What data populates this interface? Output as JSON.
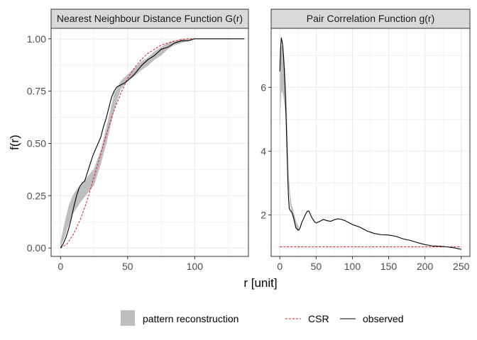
{
  "colors": {
    "strip_fill": "#d9d9d9",
    "grid": "#ebebeb",
    "panel_border": "#333333",
    "band": "#bebebe",
    "csr": "#e41a1c",
    "observed": "#000000"
  },
  "axis_titles": {
    "x": "r [unit]",
    "y": "f(r)"
  },
  "legend": {
    "position": "bottom",
    "items": [
      {
        "label": "pattern reconstruction",
        "kind": "band"
      },
      {
        "label": "CSR",
        "kind": "dashed-line"
      },
      {
        "label": "observed",
        "kind": "line"
      }
    ]
  },
  "chart_data": [
    {
      "type": "line",
      "title": "Nearest Neighbour Distance Function G(r)",
      "xlim": [
        -7,
        140
      ],
      "ylim": [
        -0.04,
        1.05
      ],
      "x_ticks": [
        0,
        50,
        100
      ],
      "y_ticks": [
        0.0,
        0.25,
        0.5,
        0.75,
        1.0
      ],
      "y_tick_labels": [
        "0.00",
        "0.25",
        "0.50",
        "0.75",
        "1.00"
      ],
      "grid": true,
      "series": [
        {
          "name": "pattern reconstruction",
          "kind": "band",
          "x": [
            0,
            3,
            6,
            9,
            12,
            15,
            20,
            25,
            30,
            35,
            40,
            45,
            50,
            55,
            60,
            65,
            70,
            75,
            80,
            85,
            90,
            95,
            100,
            110
          ],
          "lo": [
            0.0,
            0.05,
            0.11,
            0.16,
            0.19,
            0.22,
            0.26,
            0.3,
            0.4,
            0.52,
            0.66,
            0.76,
            0.8,
            0.82,
            0.85,
            0.87,
            0.9,
            0.92,
            0.95,
            0.97,
            0.98,
            0.99,
            1.0,
            1.0
          ],
          "hi": [
            0.03,
            0.12,
            0.2,
            0.25,
            0.28,
            0.3,
            0.34,
            0.38,
            0.47,
            0.6,
            0.74,
            0.8,
            0.83,
            0.86,
            0.89,
            0.91,
            0.94,
            0.96,
            0.98,
            0.99,
            1.0,
            1.0,
            1.0,
            1.0
          ]
        },
        {
          "name": "CSR",
          "kind": "dashed-line",
          "x": [
            0,
            5,
            10,
            15,
            20,
            25,
            30,
            35,
            40,
            45,
            50,
            55,
            60,
            65,
            70,
            75,
            80,
            85,
            90,
            95,
            100
          ],
          "y": [
            0.0,
            0.02,
            0.07,
            0.14,
            0.23,
            0.34,
            0.45,
            0.56,
            0.66,
            0.74,
            0.81,
            0.86,
            0.9,
            0.93,
            0.95,
            0.97,
            0.98,
            0.99,
            0.995,
            1.0,
            1.0
          ]
        },
        {
          "name": "observed",
          "kind": "line",
          "x": [
            0,
            2,
            4,
            6,
            8,
            10,
            12,
            14,
            16,
            18,
            20,
            22,
            24,
            26,
            28,
            30,
            32,
            34,
            36,
            38,
            40,
            42,
            45,
            48,
            50,
            55,
            60,
            65,
            70,
            75,
            80,
            85,
            90,
            95,
            100,
            110,
            120,
            130,
            137
          ],
          "y": [
            0.0,
            0.02,
            0.05,
            0.09,
            0.14,
            0.2,
            0.25,
            0.29,
            0.31,
            0.32,
            0.36,
            0.4,
            0.44,
            0.47,
            0.5,
            0.53,
            0.58,
            0.62,
            0.67,
            0.72,
            0.75,
            0.77,
            0.78,
            0.79,
            0.8,
            0.83,
            0.87,
            0.9,
            0.92,
            0.95,
            0.96,
            0.98,
            0.99,
            0.99,
            1.0,
            1.0,
            1.0,
            1.0,
            1.0
          ]
        }
      ]
    },
    {
      "type": "line",
      "title": "Pair Correlation Function g(r)",
      "xlim": [
        -12,
        262
      ],
      "ylim": [
        0.7,
        7.85
      ],
      "x_ticks": [
        0,
        50,
        100,
        150,
        200,
        250
      ],
      "y_ticks": [
        2,
        4,
        6
      ],
      "y_tick_labels": [
        "2",
        "4",
        "6"
      ],
      "grid": true,
      "series": [
        {
          "name": "pattern reconstruction",
          "kind": "band",
          "x": [
            0,
            1,
            2,
            3,
            4,
            5,
            6,
            7,
            8,
            9,
            10,
            11,
            12,
            14,
            16,
            18,
            20,
            22,
            24,
            26
          ],
          "lo": [
            4.6,
            5.3,
            5.8,
            5.9,
            5.8,
            5.7,
            5.5,
            5.3,
            5.1,
            4.8,
            4.2,
            3.6,
            2.9,
            2.35,
            2.05,
            1.9,
            1.75,
            1.6,
            1.5,
            1.5
          ],
          "hi": [
            6.4,
            7.0,
            7.3,
            7.3,
            7.2,
            7.1,
            6.9,
            6.6,
            6.2,
            5.7,
            5.0,
            4.3,
            3.4,
            2.7,
            2.35,
            2.2,
            2.0,
            1.85,
            1.7,
            1.65
          ]
        },
        {
          "name": "CSR",
          "kind": "dashed-line",
          "x": [
            0,
            250
          ],
          "y": [
            1.0,
            1.0
          ]
        },
        {
          "name": "observed",
          "kind": "line",
          "x": [
            0,
            1,
            2,
            3,
            4,
            5,
            6,
            7,
            8,
            9,
            10,
            11,
            12,
            13,
            14,
            16,
            18,
            20,
            22,
            24,
            26,
            28,
            30,
            32,
            34,
            36,
            38,
            40,
            42,
            44,
            46,
            48,
            50,
            55,
            60,
            65,
            70,
            75,
            80,
            85,
            90,
            95,
            100,
            110,
            120,
            130,
            140,
            150,
            160,
            170,
            180,
            190,
            200,
            210,
            220,
            230,
            240,
            250
          ],
          "y": [
            6.5,
            7.2,
            7.55,
            7.45,
            7.3,
            7.0,
            6.6,
            6.1,
            5.5,
            4.7,
            3.9,
            3.1,
            2.5,
            2.2,
            2.15,
            2.1,
            2.0,
            1.8,
            1.6,
            1.55,
            1.52,
            1.6,
            1.75,
            1.85,
            1.95,
            2.05,
            2.12,
            2.12,
            2.02,
            1.92,
            1.85,
            1.78,
            1.75,
            1.8,
            1.86,
            1.82,
            1.8,
            1.85,
            1.88,
            1.86,
            1.82,
            1.76,
            1.7,
            1.62,
            1.5,
            1.42,
            1.38,
            1.37,
            1.33,
            1.25,
            1.2,
            1.13,
            1.07,
            1.03,
            1.02,
            1.0,
            0.97,
            0.92
          ]
        }
      ]
    }
  ]
}
